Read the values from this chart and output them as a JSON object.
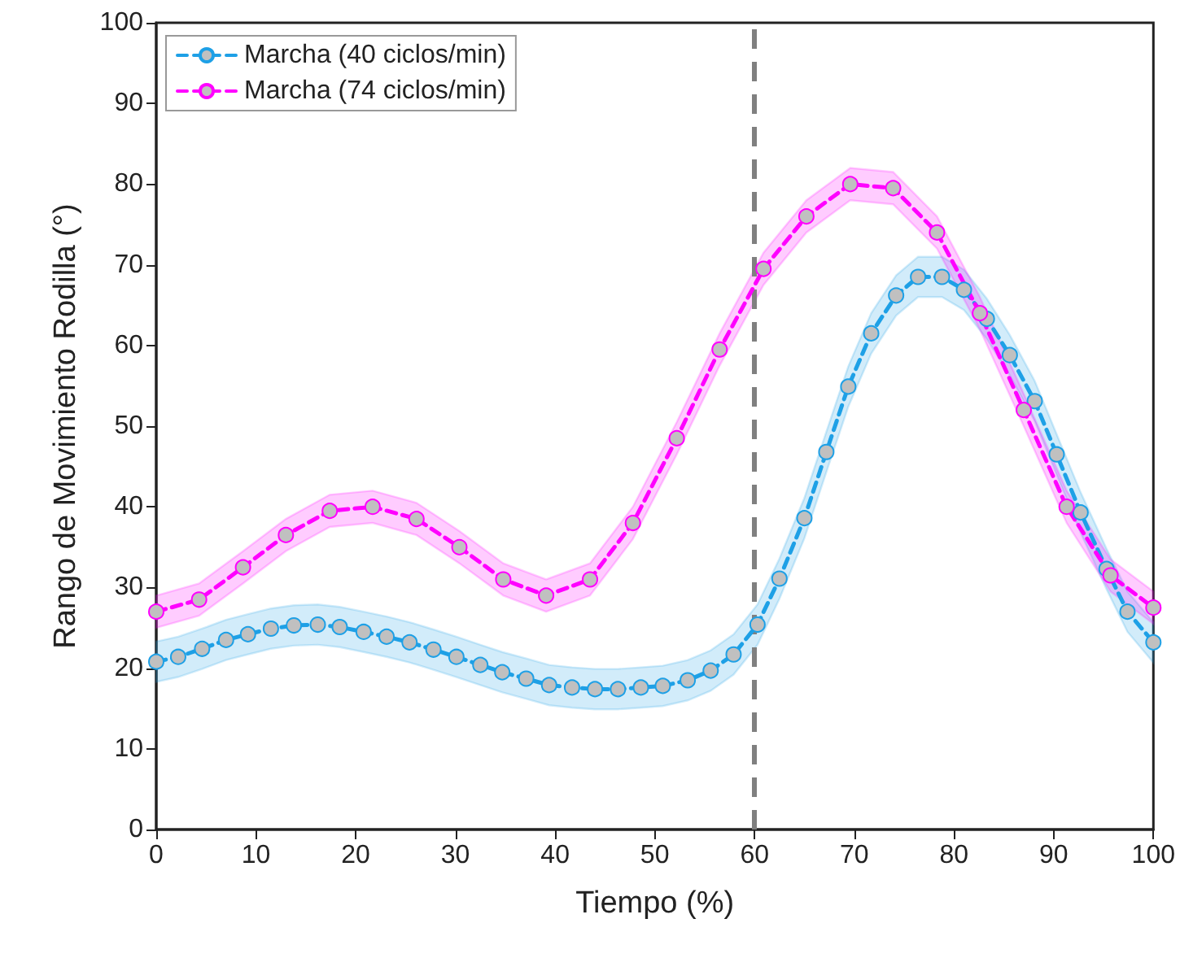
{
  "chart_data": {
    "type": "line",
    "xlabel": "Tiempo (%)",
    "ylabel": "Rango de Movimiento Rodilla (°)",
    "xlim": [
      0,
      100
    ],
    "ylim": [
      0,
      100
    ],
    "xticks": [
      0,
      10,
      20,
      30,
      40,
      50,
      60,
      70,
      80,
      90,
      100
    ],
    "yticks": [
      0,
      10,
      20,
      30,
      40,
      50,
      60,
      70,
      80,
      90,
      100
    ],
    "grid": false,
    "legend": "top left",
    "marker": "circle",
    "line_style": "dashed",
    "ref_lines": [
      {
        "axis": "x",
        "value": 60,
        "color": "#808080",
        "line_style": "dashed"
      }
    ],
    "series": [
      {
        "name": "Marcha (40 ciclos/min)",
        "color": "#1ea0e6",
        "x": [
          0,
          2.2,
          4.6,
          7,
          9.2,
          11.5,
          13.8,
          16.2,
          18.4,
          20.8,
          23.1,
          25.4,
          27.8,
          30.1,
          32.5,
          34.7,
          37.1,
          39.4,
          41.7,
          44,
          46.3,
          48.6,
          50.8,
          53.3,
          55.6,
          57.9,
          60.3,
          62.5,
          65,
          67.2,
          69.4,
          71.7,
          74.2,
          76.4,
          78.8,
          81,
          83.3,
          85.6,
          88.1,
          90.3,
          92.7,
          95.3,
          97.4,
          100
        ],
        "values": [
          20.8,
          21.4,
          22.4,
          23.5,
          24.2,
          24.9,
          25.3,
          25.4,
          25.1,
          24.5,
          23.9,
          23.2,
          22.3,
          21.4,
          20.4,
          19.5,
          18.7,
          17.9,
          17.6,
          17.4,
          17.4,
          17.6,
          17.8,
          18.5,
          19.7,
          21.7,
          25.4,
          31.1,
          38.6,
          46.8,
          54.9,
          61.5,
          66.2,
          68.5,
          68.5,
          66.9,
          63.3,
          58.8,
          53.1,
          46.5,
          39.3,
          32.3,
          27,
          23.2
        ],
        "lower": [
          18.3,
          18.9,
          19.9,
          21,
          21.7,
          22.4,
          22.8,
          22.9,
          22.6,
          22,
          21.4,
          20.7,
          19.8,
          18.9,
          17.9,
          17,
          16.2,
          15.4,
          15.1,
          14.9,
          14.9,
          15.1,
          15.3,
          16,
          17.2,
          19.2,
          22.9,
          28.6,
          36.1,
          44.3,
          52.4,
          59,
          63.7,
          66,
          66,
          64.4,
          60.8,
          56.3,
          50.6,
          44,
          36.8,
          29.8,
          24.5,
          20.7
        ],
        "upper": [
          23.3,
          23.9,
          24.9,
          26,
          26.7,
          27.4,
          27.8,
          27.9,
          27.6,
          27,
          26.4,
          25.7,
          24.8,
          23.9,
          22.9,
          22,
          21.2,
          20.4,
          20.1,
          19.9,
          19.9,
          20.1,
          20.3,
          21,
          22.2,
          24.2,
          27.9,
          33.6,
          41.1,
          49.3,
          57.4,
          64,
          68.7,
          71,
          71,
          69.4,
          65.8,
          61.3,
          55.6,
          49,
          41.8,
          34.8,
          29.5,
          25.7
        ]
      },
      {
        "name": "Marcha (74 ciclos/min)",
        "color": "#ff00ff",
        "x": [
          0,
          4.3,
          8.7,
          13,
          17.4,
          21.7,
          26.1,
          30.4,
          34.8,
          39.1,
          43.5,
          47.8,
          52.2,
          56.5,
          60.9,
          65.2,
          69.6,
          73.9,
          78.3,
          82.6,
          87,
          91.3,
          95.7,
          100
        ],
        "values": [
          27,
          28.5,
          32.5,
          36.5,
          39.5,
          40,
          38.5,
          35,
          31,
          29,
          31,
          38,
          48.5,
          59.5,
          69.5,
          76,
          80,
          79.5,
          74,
          64,
          52,
          40,
          31.5,
          27.5
        ],
        "lower": [
          25,
          26.5,
          30.5,
          34.5,
          37.5,
          38,
          36.5,
          33,
          29,
          27,
          29,
          36,
          46.5,
          57.5,
          67.5,
          74,
          78,
          77.5,
          72,
          62,
          50,
          38,
          29.5,
          25.5
        ],
        "upper": [
          29,
          30.5,
          34.5,
          38.5,
          41.5,
          42,
          40.5,
          37,
          33,
          31,
          33,
          40,
          50.5,
          61.5,
          71.5,
          78,
          82,
          81.5,
          76,
          66,
          54,
          42,
          33.5,
          29.5
        ]
      }
    ]
  }
}
